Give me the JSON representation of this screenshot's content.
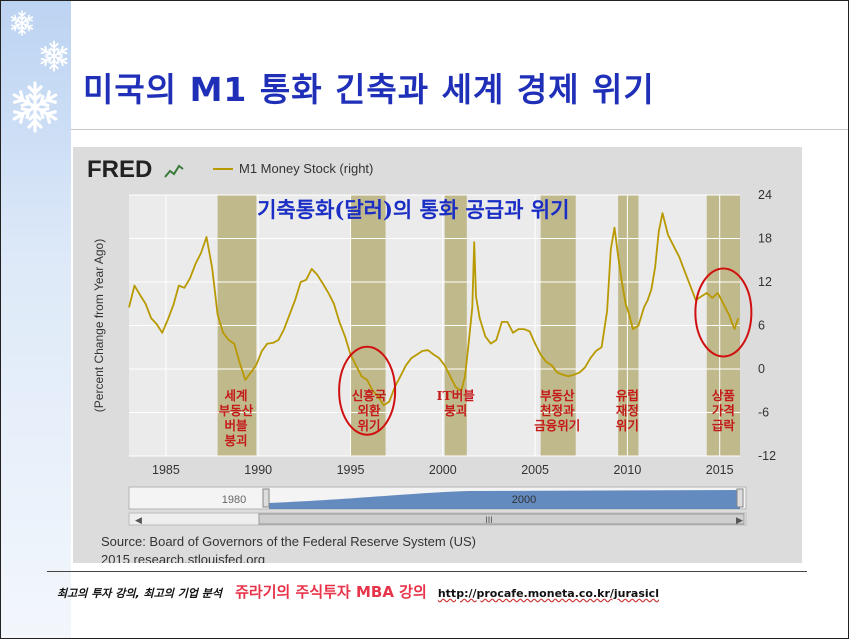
{
  "slide": {
    "title": "미국의 M1 통화 긴축과 세계 경제 위기"
  },
  "icons": {
    "snowflake": "snowflake-icon"
  },
  "chart_data": {
    "type": "line",
    "brand": "FRED",
    "legend": "M1 Money Stock (right)",
    "ylabel": "(Percent Change from Year Ago)",
    "overlay_title": "기축통화(달러)의 통화 공급과 위기",
    "x_ticks": [
      "1985",
      "1990",
      "1995",
      "2000",
      "2005",
      "2010",
      "2015"
    ],
    "y_ticks": [
      "24",
      "18",
      "12",
      "6",
      "0",
      "-6",
      "-12"
    ],
    "xlim": [
      1983,
      2016.1
    ],
    "ylim": [
      -12,
      24
    ],
    "line_color": "#b89900",
    "recession_color": "#b8b07a",
    "recessions": [
      {
        "start": 1987.8,
        "end": 1989.9
      },
      {
        "start": 1995.0,
        "end": 1996.9
      },
      {
        "start": 2000.1,
        "end": 2001.3
      },
      {
        "start": 2005.3,
        "end": 2007.2
      },
      {
        "start": 2009.5,
        "end": 2010.6
      },
      {
        "start": 2014.3,
        "end": 2016.1
      }
    ],
    "annotations": [
      {
        "x": 1988.8,
        "lines": [
          "세계",
          "부동산",
          "버블",
          "붕괴"
        ]
      },
      {
        "x": 1996.0,
        "lines": [
          "신흥국",
          "외환",
          "위기"
        ]
      },
      {
        "x": 2000.7,
        "lines": [
          "IT버블",
          "붕괴"
        ]
      },
      {
        "x": 2006.2,
        "lines": [
          "부동산",
          "천정과",
          "금융위기"
        ]
      },
      {
        "x": 2010.0,
        "lines": [
          "유럽",
          "재정",
          "위기"
        ]
      },
      {
        "x": 2015.2,
        "lines": [
          "상품",
          "가격",
          "급락"
        ]
      }
    ],
    "highlight_circles": [
      {
        "x": 1995.9,
        "y": -3
      },
      {
        "x": 2015.2,
        "y": 7.8
      }
    ],
    "series": [
      {
        "values": [
          [
            1983.0,
            8.5
          ],
          [
            1983.3,
            11.5
          ],
          [
            1983.6,
            10.2
          ],
          [
            1983.9,
            9.0
          ],
          [
            1984.2,
            7.0
          ],
          [
            1984.5,
            6.2
          ],
          [
            1984.8,
            5.0
          ],
          [
            1985.1,
            6.8
          ],
          [
            1985.4,
            8.8
          ],
          [
            1985.7,
            11.5
          ],
          [
            1986.0,
            11.2
          ],
          [
            1986.3,
            12.5
          ],
          [
            1986.6,
            14.5
          ],
          [
            1986.9,
            16.0
          ],
          [
            1987.2,
            18.2
          ],
          [
            1987.5,
            14.0
          ],
          [
            1987.8,
            7.5
          ],
          [
            1988.1,
            5.0
          ],
          [
            1988.4,
            4.0
          ],
          [
            1988.7,
            3.5
          ],
          [
            1989.0,
            0.8
          ],
          [
            1989.3,
            -1.5
          ],
          [
            1989.6,
            -0.5
          ],
          [
            1989.9,
            0.6
          ],
          [
            1990.2,
            2.5
          ],
          [
            1990.5,
            3.5
          ],
          [
            1990.8,
            3.6
          ],
          [
            1991.1,
            4.0
          ],
          [
            1991.4,
            5.5
          ],
          [
            1991.7,
            7.5
          ],
          [
            1992.0,
            9.5
          ],
          [
            1992.3,
            12.0
          ],
          [
            1992.6,
            12.3
          ],
          [
            1992.9,
            13.8
          ],
          [
            1993.2,
            13.0
          ],
          [
            1993.5,
            11.8
          ],
          [
            1993.8,
            10.5
          ],
          [
            1994.1,
            9.0
          ],
          [
            1994.4,
            6.5
          ],
          [
            1994.7,
            4.5
          ],
          [
            1995.0,
            2.0
          ],
          [
            1995.3,
            0.5
          ],
          [
            1995.6,
            -1.0
          ],
          [
            1995.9,
            -1.5
          ],
          [
            1996.2,
            -3.0
          ],
          [
            1996.5,
            -3.8
          ],
          [
            1996.8,
            -5.0
          ],
          [
            1997.1,
            -4.5
          ],
          [
            1997.4,
            -2.5
          ],
          [
            1997.7,
            -1.0
          ],
          [
            1998.0,
            0.5
          ],
          [
            1998.3,
            1.5
          ],
          [
            1998.6,
            2.0
          ],
          [
            1998.9,
            2.5
          ],
          [
            1999.2,
            2.6
          ],
          [
            1999.5,
            2.0
          ],
          [
            1999.8,
            1.5
          ],
          [
            2000.1,
            0.5
          ],
          [
            2000.4,
            -1.0
          ],
          [
            2000.7,
            -2.5
          ],
          [
            2001.0,
            -3.0
          ],
          [
            2001.2,
            -1.0
          ],
          [
            2001.4,
            3.5
          ],
          [
            2001.6,
            8.5
          ],
          [
            2001.7,
            17.5
          ],
          [
            2001.8,
            10.0
          ],
          [
            2002.0,
            7.0
          ],
          [
            2002.3,
            4.5
          ],
          [
            2002.6,
            3.5
          ],
          [
            2002.9,
            4.0
          ],
          [
            2003.2,
            6.5
          ],
          [
            2003.5,
            6.5
          ],
          [
            2003.8,
            5.0
          ],
          [
            2004.1,
            5.5
          ],
          [
            2004.4,
            5.5
          ],
          [
            2004.7,
            5.2
          ],
          [
            2005.0,
            3.5
          ],
          [
            2005.3,
            2.0
          ],
          [
            2005.6,
            1.0
          ],
          [
            2005.9,
            0.5
          ],
          [
            2006.2,
            -0.5
          ],
          [
            2006.5,
            -0.8
          ],
          [
            2006.8,
            -1.0
          ],
          [
            2007.1,
            -0.8
          ],
          [
            2007.4,
            -0.5
          ],
          [
            2007.7,
            0.2
          ],
          [
            2008.0,
            1.5
          ],
          [
            2008.3,
            2.5
          ],
          [
            2008.6,
            3.0
          ],
          [
            2008.9,
            8.0
          ],
          [
            2009.1,
            16.5
          ],
          [
            2009.3,
            19.5
          ],
          [
            2009.5,
            15.5
          ],
          [
            2009.7,
            12.0
          ],
          [
            2009.9,
            9.0
          ],
          [
            2010.1,
            7.5
          ],
          [
            2010.3,
            5.5
          ],
          [
            2010.6,
            6.0
          ],
          [
            2010.9,
            8.5
          ],
          [
            2011.1,
            9.5
          ],
          [
            2011.3,
            11.0
          ],
          [
            2011.5,
            14.0
          ],
          [
            2011.7,
            19.0
          ],
          [
            2011.9,
            21.5
          ],
          [
            2012.2,
            18.5
          ],
          [
            2012.5,
            17.0
          ],
          [
            2012.8,
            15.5
          ],
          [
            2013.1,
            13.5
          ],
          [
            2013.4,
            11.5
          ],
          [
            2013.7,
            9.5
          ],
          [
            2014.0,
            10.0
          ],
          [
            2014.3,
            10.5
          ],
          [
            2014.6,
            9.8
          ],
          [
            2014.9,
            10.5
          ],
          [
            2015.2,
            9.0
          ],
          [
            2015.5,
            7.5
          ],
          [
            2015.8,
            5.5
          ],
          [
            2016.0,
            7.0
          ]
        ]
      }
    ],
    "navigator": {
      "labels": [
        "1980",
        "2000"
      ],
      "scroll_label": "III"
    },
    "source_line1": "Source: Board of Governors of the Federal Reserve System (US)",
    "source_line2": "2015 research.stlouisfed.org"
  },
  "footer": {
    "left": "최고의 투자 강의, 최고의 기업 분석",
    "brand": "쥬라기의 주식투자 MBA 강의",
    "url": "http://procafe.moneta.co.kr/jurasicl"
  }
}
